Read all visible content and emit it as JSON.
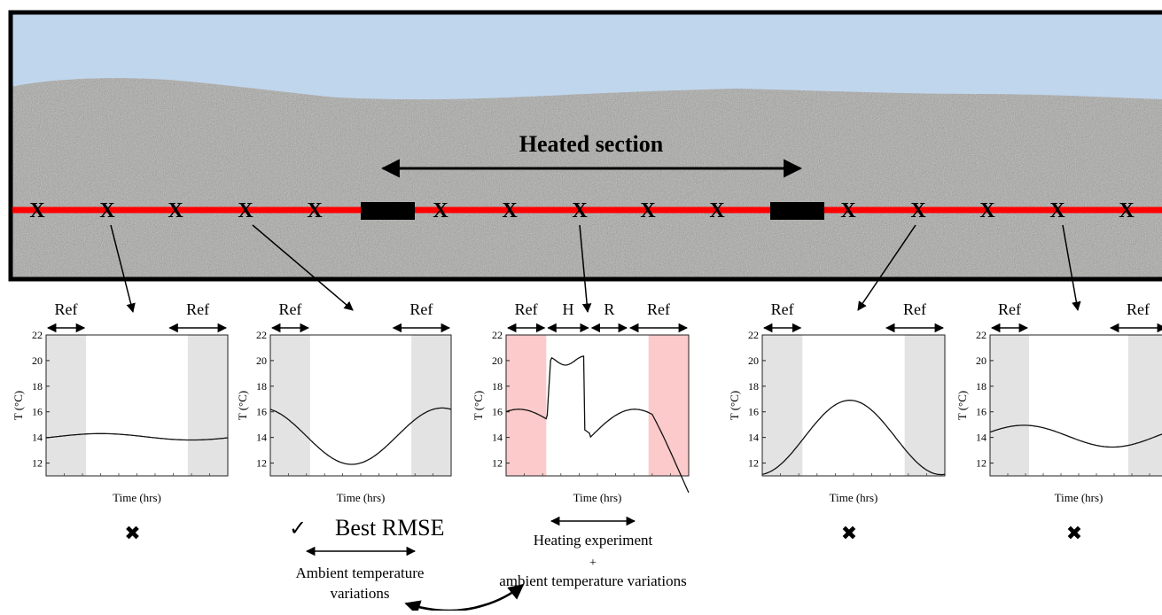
{
  "section_title": "Heated section",
  "ref_label": "Ref",
  "heat_label": "H",
  "recovery_label": "R",
  "y_axis_label": "T (°C)",
  "x_axis_label": "Time (hrs)",
  "y_ticks": [
    "22",
    "20",
    "18",
    "16",
    "14",
    "12"
  ],
  "plots": [
    {
      "id": "plot-1",
      "result": "cross",
      "curve": "flat"
    },
    {
      "id": "plot-2",
      "result": "check",
      "curve": "dip"
    },
    {
      "id": "plot-3",
      "result": "heating",
      "curve": "heating"
    },
    {
      "id": "plot-4",
      "result": "cross",
      "curve": "hump"
    },
    {
      "id": "plot-5",
      "result": "cross",
      "curve": "gentle"
    }
  ],
  "check_mark": "✓",
  "cross_mark": "✖",
  "best_rmse_label": "Best RMSE",
  "ambient_label_line1": "Ambient temperature",
  "ambient_label_line2": "variations",
  "heating_label_line1": "Heating experiment",
  "heating_label_plus": "+",
  "heating_label_line2": "ambient temperature variations",
  "colors": {
    "sky": "#c0d6ec",
    "soil": "#a9a9a7",
    "cable": "#ff0000",
    "ref_shade": "#e3e3e3",
    "heat_shade": "#fccaca"
  }
}
